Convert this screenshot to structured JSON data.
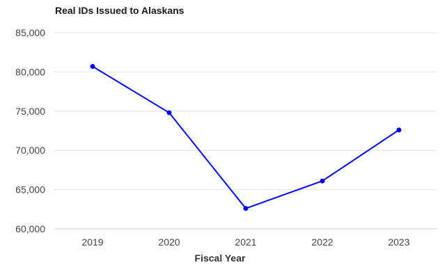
{
  "chart_data": {
    "type": "line",
    "title": "Real IDs Issued to Alaskans",
    "xlabel": "Fiscal Year",
    "ylabel": "",
    "categories": [
      "2019",
      "2020",
      "2021",
      "2022",
      "2023"
    ],
    "series": [
      {
        "values": [
          80700,
          74800,
          62600,
          66100,
          72600
        ],
        "color": "#0000ff"
      }
    ],
    "ylim": [
      60000,
      85000
    ],
    "yticks": [
      60000,
      65000,
      70000,
      75000,
      80000,
      85000
    ],
    "ytick_labels": [
      "60,000",
      "65,000",
      "70,000",
      "75,000",
      "80,000",
      "85,000"
    ],
    "grid": true,
    "legend": "none",
    "colors": {
      "line": "#0000ff",
      "grid": "#e2e2e2",
      "axis": "#cccccc"
    }
  }
}
